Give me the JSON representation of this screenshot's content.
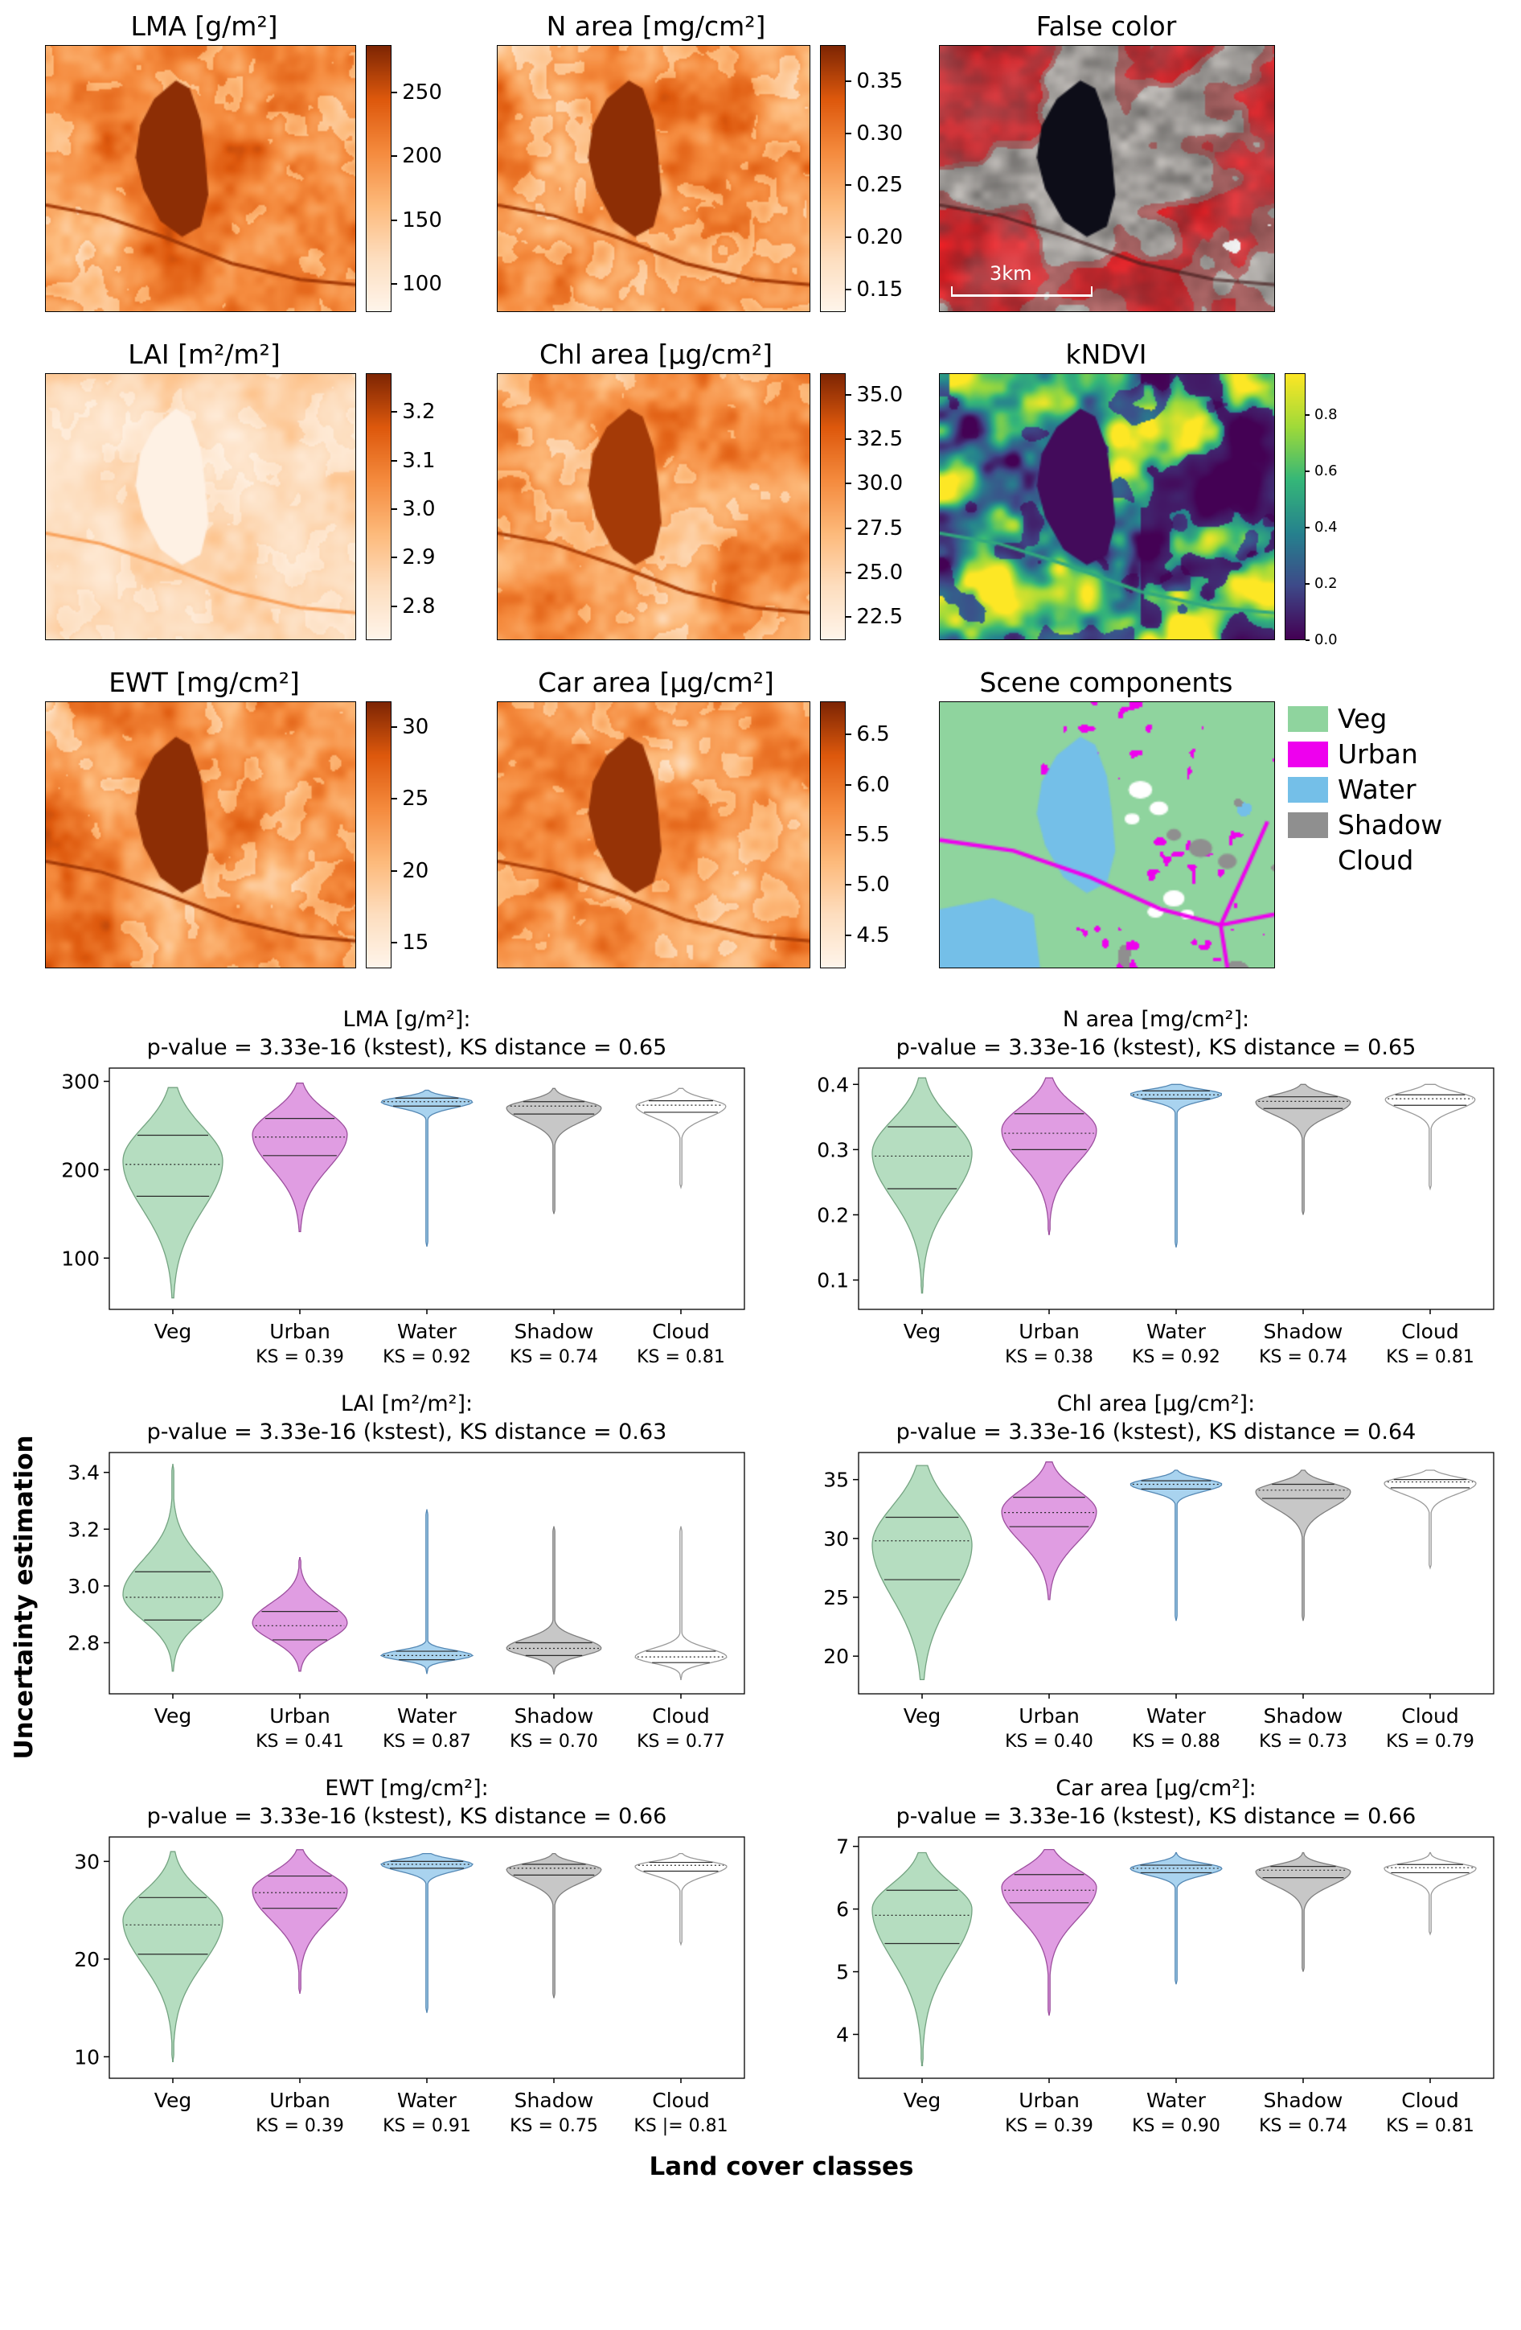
{
  "labels": {
    "ylabel": "Uncertainty estimation",
    "xlabel": "Land cover classes"
  },
  "category_styles": {
    "Veg": {
      "fill": "#b5ddc0",
      "edge": "#74a381"
    },
    "Urban": {
      "fill": "#e09de2",
      "edge": "#9c4f9e"
    },
    "Water": {
      "fill": "#a9d3ef",
      "edge": "#5588b4"
    },
    "Shadow": {
      "fill": "#c7c7c7",
      "edge": "#7f7f7f"
    },
    "Cloud": {
      "fill": "#ffffff",
      "edge": "#999999"
    }
  },
  "panels": [
    {
      "id": "lma",
      "title": "LMA [g/m²]",
      "type": "trait",
      "seed": 11,
      "style": {
        "base": 0.58,
        "amp": 0.26,
        "tex": 0.16,
        "fields": 0.22,
        "lake": 0.97,
        "road": 0.92
      },
      "colorbar": {
        "ticks": [
          "250",
          "200",
          "150",
          "100"
        ],
        "values": [
          250,
          200,
          150,
          100
        ],
        "range": [
          78,
          287
        ]
      }
    },
    {
      "id": "narea",
      "title": "N area [mg/cm²]",
      "type": "trait",
      "seed": 23,
      "style": {
        "base": 0.58,
        "amp": 0.26,
        "tex": 0.16,
        "fields": 0.22,
        "lake": 0.97,
        "road": 0.92
      },
      "colorbar": {
        "ticks": [
          "0.35",
          "0.30",
          "0.25",
          "0.20",
          "0.15"
        ],
        "values": [
          0.35,
          0.3,
          0.25,
          0.2,
          0.15
        ],
        "range": [
          0.128,
          0.385
        ]
      }
    },
    {
      "id": "falsecolor",
      "title": "False color",
      "type": "falsecolor",
      "seed": 37,
      "scalebar": "3km"
    },
    {
      "id": "lai",
      "title": "LAI [m²/m²]",
      "type": "trait",
      "seed": 41,
      "style": {
        "base": 0.22,
        "amp": 0.15,
        "tex": 0.09,
        "fields": 0.1,
        "lake": 0.03,
        "road": 0.5
      },
      "colorbar": {
        "ticks": [
          "3.2",
          "3.1",
          "3.0",
          "2.9",
          "2.8"
        ],
        "values": [
          3.2,
          3.1,
          3.0,
          2.9,
          2.8
        ],
        "range": [
          2.73,
          3.28
        ]
      }
    },
    {
      "id": "chl",
      "title": "Chl area [µg/cm²]",
      "type": "trait",
      "seed": 53,
      "style": {
        "base": 0.55,
        "amp": 0.25,
        "tex": 0.15,
        "fields": 0.2,
        "lake": 0.92,
        "road": 0.9
      },
      "colorbar": {
        "ticks": [
          "35.0",
          "32.5",
          "30.0",
          "27.5",
          "25.0",
          "22.5"
        ],
        "values": [
          35.0,
          32.5,
          30.0,
          27.5,
          25.0,
          22.5
        ],
        "range": [
          21.2,
          36.2
        ]
      }
    },
    {
      "id": "kndvi",
      "title": "kNDVI",
      "type": "kndvi",
      "seed": 67,
      "colorbar": {
        "ticks": [
          "0.8",
          "0.6",
          "0.4",
          "0.2",
          "0.0"
        ],
        "values": [
          0.8,
          0.6,
          0.4,
          0.2,
          0.0
        ],
        "range": [
          0.0,
          0.95
        ],
        "small": true
      }
    },
    {
      "id": "ewt",
      "title": "EWT [mg/cm²]",
      "type": "trait",
      "seed": 79,
      "style": {
        "base": 0.58,
        "amp": 0.26,
        "tex": 0.16,
        "fields": 0.22,
        "lake": 0.97,
        "road": 0.92
      },
      "colorbar": {
        "ticks": [
          "30",
          "25",
          "20",
          "15"
        ],
        "values": [
          30,
          25,
          20,
          15
        ],
        "range": [
          13.2,
          31.8
        ]
      }
    },
    {
      "id": "car",
      "title": "Car area [µg/cm²]",
      "type": "trait",
      "seed": 83,
      "style": {
        "base": 0.55,
        "amp": 0.25,
        "tex": 0.15,
        "fields": 0.2,
        "lake": 0.95,
        "road": 0.9
      },
      "colorbar": {
        "ticks": [
          "6.5",
          "6.0",
          "5.5",
          "5.0",
          "4.5"
        ],
        "values": [
          6.5,
          6.0,
          5.5,
          5.0,
          4.5
        ],
        "range": [
          4.17,
          6.83
        ]
      }
    },
    {
      "id": "scene",
      "title": "Scene components",
      "type": "scene",
      "seed": 97,
      "legend": [
        {
          "label": "Veg",
          "color": "#8fd49e"
        },
        {
          "label": "Urban",
          "color": "#ee00ee"
        },
        {
          "label": "Water",
          "color": "#74bfe8"
        },
        {
          "label": "Shadow",
          "color": "#8f8f8f"
        },
        {
          "label": "Cloud",
          "color": "#ffffff"
        }
      ]
    }
  ],
  "chart_data": [
    {
      "type": "violin",
      "title": "LMA [g/m²]:",
      "subtitle": "p-value = 3.33e-16 (kstest), KS distance = 0.65",
      "ylim": [
        42,
        315
      ],
      "yticks": [
        100,
        200,
        300
      ],
      "ytick_labels": [
        "100",
        "200",
        "300"
      ],
      "categories": [
        "Veg",
        "Urban",
        "Water",
        "Shadow",
        "Cloud"
      ],
      "ks_labels": [
        "",
        "KS = 0.39",
        "KS = 0.92",
        "KS = 0.74",
        "KS = 0.81"
      ],
      "violins": [
        {
          "range": [
            55,
            293
          ],
          "mu": 210,
          "su": 38,
          "sd": 55,
          "q1": 170,
          "median": 206,
          "q3": 239,
          "w": 1.0
        },
        {
          "range": [
            130,
            298
          ],
          "mu": 240,
          "su": 25,
          "sd": 38,
          "q1": 216,
          "median": 237,
          "q3": 258,
          "w": 0.95
        },
        {
          "range": [
            113,
            290
          ],
          "mu": 277,
          "su": 5,
          "sd": 7,
          "q1": 272,
          "median": 277,
          "q3": 281,
          "w": 0.92
        },
        {
          "range": [
            150,
            292
          ],
          "mu": 270,
          "su": 8,
          "sd": 15,
          "q1": 263,
          "median": 272,
          "q3": 277,
          "w": 0.95
        },
        {
          "range": [
            180,
            292
          ],
          "mu": 272,
          "su": 8,
          "sd": 13,
          "q1": 265,
          "median": 273,
          "q3": 278,
          "w": 0.9
        }
      ]
    },
    {
      "type": "violin",
      "title": "N area [mg/cm²]:",
      "subtitle": "p-value = 3.33e-16 (kstest), KS distance = 0.65",
      "ylim": [
        0.055,
        0.425
      ],
      "yticks": [
        0.1,
        0.2,
        0.3,
        0.4
      ],
      "ytick_labels": [
        "0.1",
        "0.2",
        "0.3",
        "0.4"
      ],
      "categories": [
        "Veg",
        "Urban",
        "Water",
        "Shadow",
        "Cloud"
      ],
      "ks_labels": [
        "",
        "KS = 0.38",
        "KS = 0.92",
        "KS = 0.74",
        "KS = 0.81"
      ],
      "violins": [
        {
          "range": [
            0.08,
            0.41
          ],
          "mu": 0.295,
          "su": 0.05,
          "sd": 0.07,
          "q1": 0.24,
          "median": 0.29,
          "q3": 0.335,
          "w": 1.0
        },
        {
          "range": [
            0.17,
            0.41
          ],
          "mu": 0.33,
          "su": 0.035,
          "sd": 0.05,
          "q1": 0.3,
          "median": 0.325,
          "q3": 0.355,
          "w": 0.95
        },
        {
          "range": [
            0.15,
            0.4
          ],
          "mu": 0.385,
          "su": 0.007,
          "sd": 0.01,
          "q1": 0.378,
          "median": 0.384,
          "q3": 0.39,
          "w": 0.92
        },
        {
          "range": [
            0.2,
            0.4
          ],
          "mu": 0.373,
          "su": 0.011,
          "sd": 0.02,
          "q1": 0.363,
          "median": 0.374,
          "q3": 0.381,
          "w": 0.95
        },
        {
          "range": [
            0.24,
            0.4
          ],
          "mu": 0.377,
          "su": 0.011,
          "sd": 0.016,
          "q1": 0.368,
          "median": 0.378,
          "q3": 0.384,
          "w": 0.9
        }
      ]
    },
    {
      "type": "violin",
      "title": "LAI [m²/m²]:",
      "subtitle": "p-value = 3.33e-16 (kstest), KS distance = 0.63",
      "ylim": [
        2.62,
        3.47
      ],
      "yticks": [
        2.8,
        3.0,
        3.2,
        3.4
      ],
      "ytick_labels": [
        "2.8",
        "3.0",
        "3.2",
        "3.4"
      ],
      "categories": [
        "Veg",
        "Urban",
        "Water",
        "Shadow",
        "Cloud"
      ],
      "ks_labels": [
        "",
        "KS = 0.41",
        "KS = 0.87",
        "KS = 0.70",
        "KS = 0.77"
      ],
      "violins": [
        {
          "range": [
            2.7,
            3.43
          ],
          "mu": 2.97,
          "su": 0.12,
          "sd": 0.09,
          "q1": 2.88,
          "median": 2.96,
          "q3": 3.05,
          "w": 1.0
        },
        {
          "range": [
            2.7,
            3.1
          ],
          "mu": 2.87,
          "su": 0.07,
          "sd": 0.06,
          "q1": 2.81,
          "median": 2.86,
          "q3": 2.91,
          "w": 0.95
        },
        {
          "range": [
            2.69,
            3.27
          ],
          "mu": 2.755,
          "su": 0.018,
          "sd": 0.016,
          "q1": 2.74,
          "median": 2.755,
          "q3": 2.77,
          "w": 0.92
        },
        {
          "range": [
            2.69,
            3.21
          ],
          "mu": 2.78,
          "su": 0.035,
          "sd": 0.026,
          "q1": 2.755,
          "median": 2.78,
          "q3": 2.8,
          "w": 0.95
        },
        {
          "range": [
            2.67,
            3.21
          ],
          "mu": 2.75,
          "su": 0.03,
          "sd": 0.022,
          "q1": 2.73,
          "median": 2.75,
          "q3": 2.77,
          "w": 0.92
        }
      ]
    },
    {
      "type": "violin",
      "title": "Chl area [µg/cm²]:",
      "subtitle": "p-value = 3.33e-16 (kstest), KS distance = 0.64",
      "ylim": [
        16.8,
        37.3
      ],
      "yticks": [
        20,
        25,
        30,
        35
      ],
      "ytick_labels": [
        "20",
        "25",
        "30",
        "35"
      ],
      "categories": [
        "Veg",
        "Urban",
        "Water",
        "Shadow",
        "Cloud"
      ],
      "ks_labels": [
        "",
        "KS = 0.40",
        "KS = 0.88",
        "KS = 0.73",
        "KS = 0.79"
      ],
      "violins": [
        {
          "range": [
            18,
            36.2
          ],
          "mu": 29.5,
          "su": 3.2,
          "sd": 4.5,
          "q1": 26.5,
          "median": 29.8,
          "q3": 31.8,
          "w": 1.0
        },
        {
          "range": [
            24.8,
            36.5
          ],
          "mu": 32.3,
          "su": 1.8,
          "sd": 2.6,
          "q1": 31.0,
          "median": 32.2,
          "q3": 33.5,
          "w": 0.95
        },
        {
          "range": [
            23,
            35.8
          ],
          "mu": 34.6,
          "su": 0.45,
          "sd": 0.6,
          "q1": 34.2,
          "median": 34.6,
          "q3": 34.9,
          "w": 0.92
        },
        {
          "range": [
            23,
            35.8
          ],
          "mu": 34.0,
          "su": 0.7,
          "sd": 1.4,
          "q1": 33.4,
          "median": 34.1,
          "q3": 34.6,
          "w": 0.95
        },
        {
          "range": [
            27.5,
            35.8
          ],
          "mu": 34.7,
          "su": 0.5,
          "sd": 0.9,
          "q1": 34.3,
          "median": 34.8,
          "q3": 35.0,
          "w": 0.92
        }
      ]
    },
    {
      "type": "violin",
      "title": "EWT [mg/cm²]:",
      "subtitle": "p-value = 3.33e-16 (kstest), KS distance = 0.66",
      "ylim": [
        7.8,
        32.5
      ],
      "yticks": [
        10,
        20,
        30
      ],
      "ytick_labels": [
        "10",
        "20",
        "30"
      ],
      "categories": [
        "Veg",
        "Urban",
        "Water",
        "Shadow",
        "Cloud"
      ],
      "ks_labels": [
        "",
        "KS = 0.39",
        "KS = 0.91",
        "KS = 0.75",
        "KS |= 0.81"
      ],
      "violins": [
        {
          "range": [
            9.5,
            31
          ],
          "mu": 24,
          "su": 2.8,
          "sd": 4.5,
          "q1": 20.5,
          "median": 23.5,
          "q3": 26.3,
          "w": 1.0
        },
        {
          "range": [
            16.5,
            31.2
          ],
          "mu": 27,
          "su": 1.8,
          "sd": 3.0,
          "q1": 25.2,
          "median": 26.8,
          "q3": 28.5,
          "w": 0.95
        },
        {
          "range": [
            14.5,
            30.8
          ],
          "mu": 29.7,
          "su": 0.5,
          "sd": 0.7,
          "q1": 29.3,
          "median": 29.7,
          "q3": 30.0,
          "w": 0.92
        },
        {
          "range": [
            16,
            30.8
          ],
          "mu": 29.2,
          "su": 0.6,
          "sd": 1.3,
          "q1": 28.6,
          "median": 29.3,
          "q3": 29.7,
          "w": 0.95
        },
        {
          "range": [
            21.5,
            30.8
          ],
          "mu": 29.5,
          "su": 0.5,
          "sd": 0.9,
          "q1": 29.0,
          "median": 29.6,
          "q3": 29.9,
          "w": 0.92
        }
      ]
    },
    {
      "type": "violin",
      "title": "Car area [µg/cm²]:",
      "subtitle": "p-value = 3.33e-16 (kstest), KS distance = 0.66",
      "ylim": [
        3.3,
        7.15
      ],
      "yticks": [
        4,
        5,
        6,
        7
      ],
      "ytick_labels": [
        "4",
        "5",
        "6",
        "7"
      ],
      "categories": [
        "Veg",
        "Urban",
        "Water",
        "Shadow",
        "Cloud"
      ],
      "ks_labels": [
        "",
        "KS = 0.39",
        "KS = 0.90",
        "KS = 0.74",
        "KS = 0.81"
      ],
      "violins": [
        {
          "range": [
            3.5,
            6.9
          ],
          "mu": 6.0,
          "su": 0.4,
          "sd": 0.8,
          "q1": 5.45,
          "median": 5.9,
          "q3": 6.3,
          "w": 1.0
        },
        {
          "range": [
            4.3,
            6.95
          ],
          "mu": 6.35,
          "su": 0.28,
          "sd": 0.5,
          "q1": 6.1,
          "median": 6.3,
          "q3": 6.55,
          "w": 0.95
        },
        {
          "range": [
            4.8,
            6.9
          ],
          "mu": 6.65,
          "su": 0.08,
          "sd": 0.11,
          "q1": 6.58,
          "median": 6.65,
          "q3": 6.7,
          "w": 0.92
        },
        {
          "range": [
            5.0,
            6.9
          ],
          "mu": 6.6,
          "su": 0.1,
          "sd": 0.22,
          "q1": 6.5,
          "median": 6.62,
          "q3": 6.68,
          "w": 0.95
        },
        {
          "range": [
            5.6,
            6.9
          ],
          "mu": 6.65,
          "su": 0.08,
          "sd": 0.15,
          "q1": 6.58,
          "median": 6.66,
          "q3": 6.71,
          "w": 0.92
        }
      ]
    }
  ]
}
